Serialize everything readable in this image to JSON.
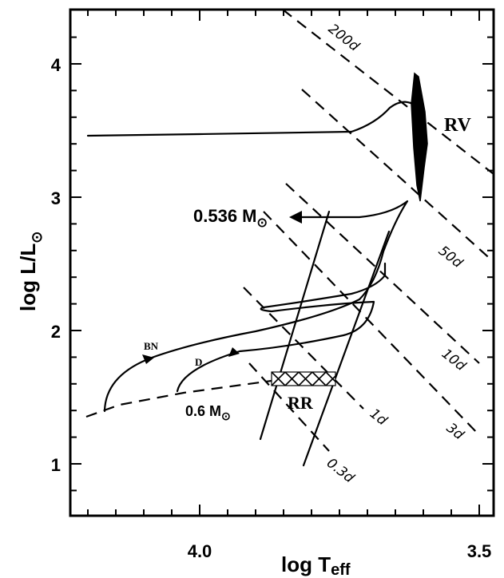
{
  "chart_data": {
    "type": "line",
    "xlabel": "log T",
    "xlabel_sub": "eff",
    "ylabel": "log L/L",
    "ylabel_sub": "⊙",
    "xlim": [
      4.4,
      3.5
    ],
    "ylim": [
      0.6,
      4.35
    ],
    "x_reversed": true,
    "x_ticks": [
      "4.0",
      "3.5"
    ],
    "y_ticks": [
      "1",
      "2",
      "3",
      "4"
    ],
    "labels": {
      "rv": "RV",
      "rr": "RR",
      "mass1": "0.536 M",
      "mass1_sub": "⊙",
      "mass2": "0.6 M",
      "mass2_sub": "⊙",
      "bn": "BN",
      "d": "D"
    },
    "period_lines": [
      "200d",
      "50d",
      "10d",
      "3d",
      "1d",
      "0.3d"
    ],
    "series": [
      {
        "id": "post-agb-track",
        "points": [
          [
            4.34,
            3.46
          ],
          [
            3.93,
            3.47
          ],
          [
            3.81,
            3.49
          ],
          [
            3.71,
            3.56
          ],
          [
            3.66,
            3.7
          ],
          [
            3.61,
            3.66
          ]
        ]
      },
      {
        "id": "bn-track",
        "points": [
          [
            4.2,
            1.43
          ],
          [
            4.19,
            1.62
          ],
          [
            4.155,
            1.76
          ],
          [
            4.1,
            1.84
          ],
          [
            3.98,
            1.94
          ],
          [
            3.84,
            2.05
          ],
          [
            3.74,
            2.18
          ],
          [
            3.7,
            2.34
          ],
          [
            3.67,
            2.6
          ],
          [
            3.65,
            2.9
          ],
          [
            3.74,
            3.03
          ],
          [
            3.82,
            3.06
          ]
        ]
      },
      {
        "id": "d-track",
        "points": [
          [
            4.1,
            1.55
          ],
          [
            4.085,
            1.63
          ],
          [
            4.02,
            1.72
          ],
          [
            3.92,
            1.76
          ],
          [
            3.8,
            1.84
          ],
          [
            3.73,
            1.98
          ],
          [
            3.715,
            2.17
          ],
          [
            3.79,
            2.14
          ],
          [
            3.88,
            2.15
          ],
          [
            3.78,
            2.25
          ],
          [
            3.74,
            2.32
          ],
          [
            3.72,
            2.35
          ]
        ]
      }
    ],
    "zahb": [
      [
        4.39,
        1.38
      ],
      [
        4.2,
        1.47
      ],
      [
        4.0,
        1.57
      ],
      [
        3.9,
        1.61
      ]
    ],
    "instability_strip": {
      "blue_edge": [
        [
          3.89,
          1.2
        ],
        [
          3.8,
          2.9
        ]
      ],
      "red_edge": [
        [
          3.8,
          1.0
        ],
        [
          3.71,
          2.75
        ]
      ]
    }
  }
}
